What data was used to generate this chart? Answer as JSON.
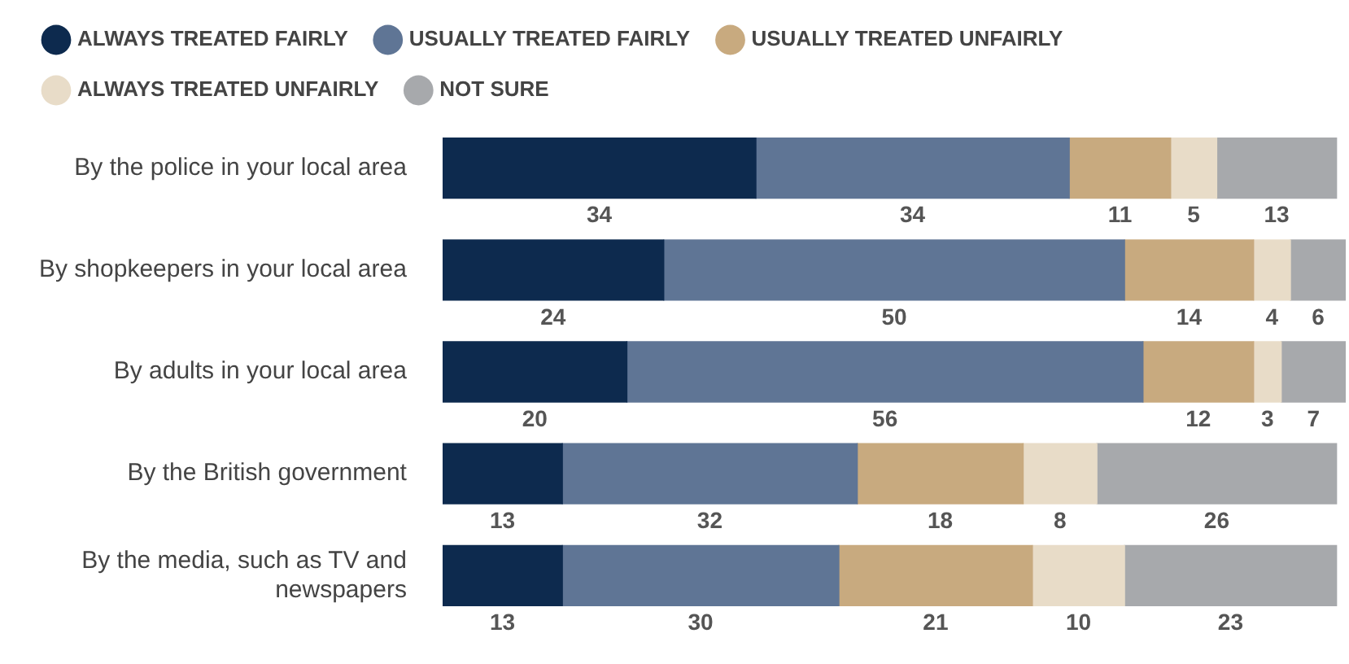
{
  "chart_data": {
    "type": "bar",
    "orientation": "horizontal",
    "stacked": true,
    "data_labels": true,
    "legend": "top left",
    "xlim": [
      0,
      98
    ],
    "categories": [
      "By the police in your local area",
      "By shopkeepers in your local area",
      "By adults in your local area",
      "By the British government",
      "By the media, such as TV and newspapers"
    ],
    "series": [
      {
        "name": "ALWAYS TREATED FAIRLY",
        "color": "#0d2a4e",
        "values": [
          34,
          24,
          20,
          13,
          13
        ]
      },
      {
        "name": "USUALLY TREATED FAIRLY",
        "color": "#5f7595",
        "values": [
          34,
          50,
          56,
          32,
          30
        ]
      },
      {
        "name": "USUALLY TREATED UNFAIRLY",
        "color": "#c8aa7f",
        "values": [
          11,
          14,
          12,
          18,
          21
        ]
      },
      {
        "name": "ALWAYS TREATED UNFAIRLY",
        "color": "#e8dcc8",
        "values": [
          5,
          4,
          3,
          8,
          10
        ]
      },
      {
        "name": "NOT SURE",
        "color": "#a7a9ac",
        "values": [
          13,
          6,
          7,
          26,
          23
        ]
      }
    ]
  }
}
